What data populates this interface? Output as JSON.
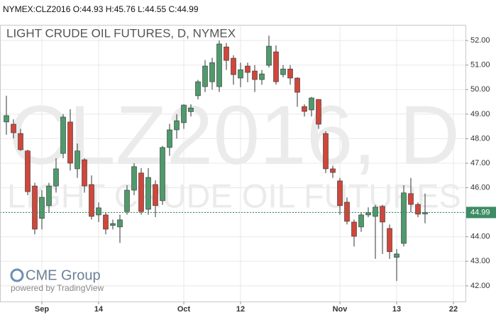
{
  "header": "NYMEX:CLZ2016 O:44.93 H:45.76 L:44.55 C:44.99",
  "chart_data": {
    "type": "candlestick",
    "title": "LIGHT CRUDE OIL FUTURES, D, NYMEX",
    "watermark": "CLZ2016, D",
    "watermark_subtitle": "LIGHT CRUDE OIL FUTURES",
    "up_color": "#4f9a6c",
    "down_color": "#d0463b",
    "grid": true,
    "open": [
      48.68,
      48.59,
      48.21,
      47.5,
      46.07,
      44.75,
      45.27,
      46.07,
      47.4,
      48.68,
      46.77,
      47.14,
      46.13,
      44.89,
      44.89,
      44.46,
      44.4,
      45.03,
      45.9,
      46.6,
      45.12,
      46.13,
      45.47,
      47.64,
      48.36,
      48.65,
      49.1,
      49.75,
      50.12,
      50.32,
      50.12,
      51.74,
      51.28,
      50.47,
      50.96,
      50.76,
      50.41,
      50.99,
      51.54,
      50.61,
      50.84,
      50.47,
      49.31,
      49.17,
      49.6,
      48.21,
      46.77,
      46.28,
      45.41,
      44.6,
      44.4,
      44.89,
      44.83,
      45.24,
      44.34,
      43.16,
      43.73,
      45.76,
      45.32,
      44.93
    ],
    "high": [
      49.75,
      48.79,
      48.4,
      47.55,
      46.2,
      45.9,
      46.2,
      47.2,
      49.0,
      49.2,
      47.8,
      47.2,
      46.5,
      45.4,
      45.0,
      44.7,
      44.9,
      46.1,
      47.0,
      46.8,
      46.8,
      46.3,
      47.7,
      48.6,
      49.0,
      49.4,
      49.4,
      50.4,
      51.2,
      51.3,
      52.0,
      51.9,
      51.4,
      51.1,
      51.1,
      51.0,
      50.8,
      52.2,
      51.8,
      51.0,
      51.0,
      50.5,
      49.4,
      49.7,
      49.6,
      48.3,
      46.9,
      46.4,
      45.6,
      44.7,
      45.0,
      45.2,
      45.3,
      45.3,
      44.5,
      43.5,
      46.1,
      46.4,
      45.4,
      45.76
    ],
    "low": [
      48.16,
      48.01,
      47.5,
      45.7,
      44.1,
      44.3,
      45.0,
      45.8,
      47.2,
      46.7,
      46.4,
      45.8,
      44.7,
      44.6,
      44.1,
      44.3,
      43.75,
      44.9,
      45.7,
      44.9,
      44.9,
      44.8,
      45.3,
      47.3,
      48.0,
      48.4,
      48.9,
      49.6,
      49.9,
      50.0,
      49.9,
      50.8,
      50.2,
      50.1,
      50.3,
      49.9,
      50.2,
      50.9,
      50.2,
      50.5,
      50.2,
      49.3,
      48.9,
      48.9,
      48.4,
      46.6,
      46.4,
      44.9,
      44.5,
      43.6,
      44.2,
      44.8,
      43.1,
      43.3,
      43.1,
      42.2,
      43.6,
      45.0,
      44.8,
      44.55
    ],
    "close": [
      48.94,
      48.24,
      47.55,
      45.84,
      44.31,
      45.61,
      46.07,
      46.77,
      48.88,
      47.0,
      47.5,
      46.07,
      44.83,
      45.18,
      44.31,
      44.54,
      44.69,
      45.9,
      46.86,
      45.03,
      46.42,
      45.27,
      47.64,
      48.36,
      48.73,
      49.37,
      49.25,
      50.32,
      50.96,
      51.1,
      51.86,
      51.19,
      50.61,
      50.81,
      50.7,
      50.41,
      50.64,
      51.77,
      50.32,
      50.84,
      50.47,
      49.89,
      49.11,
      49.66,
      48.59,
      46.77,
      46.62,
      45.27,
      44.63,
      44.02,
      44.89,
      44.98,
      45.21,
      44.6,
      43.39,
      43.3,
      45.79,
      45.32,
      44.92,
      44.99
    ],
    "xlim": [
      -0.9,
      64.7
    ],
    "xticks": [
      {
        "value": 5,
        "label": "Sep"
      },
      {
        "value": 13,
        "label": "14"
      },
      {
        "value": 25,
        "label": "Oct"
      },
      {
        "value": 33,
        "label": "12"
      },
      {
        "value": 47,
        "label": "Nov"
      },
      {
        "value": 55,
        "label": "13"
      },
      {
        "value": 63,
        "label": "22"
      }
    ],
    "ylim": [
      41.36,
      52.64
    ],
    "yticks": [
      {
        "value": 42,
        "label": "42.00"
      },
      {
        "value": 43,
        "label": "43.00"
      },
      {
        "value": 44,
        "label": "44.00"
      },
      {
        "value": 45,
        "label": "45.00"
      },
      {
        "value": 46,
        "label": "46.00"
      },
      {
        "value": 47,
        "label": "47.00"
      },
      {
        "value": 48,
        "label": "48.00"
      },
      {
        "value": 49,
        "label": "49.00"
      },
      {
        "value": 50,
        "label": "50.00"
      },
      {
        "value": 51,
        "label": "51.00"
      },
      {
        "value": 52,
        "label": "52.00"
      }
    ],
    "logo": "CME Group",
    "powered_by": "powered by TradingView"
  }
}
